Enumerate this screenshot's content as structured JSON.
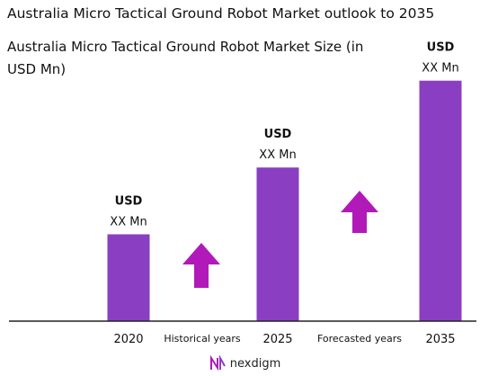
{
  "title": "Australia Micro Tactical Ground Robot Market outlook to 2035",
  "subtitle": "Australia Micro Tactical Ground Robot Market Size (in USD Mn)",
  "colors": {
    "bar": "#8a3fc2",
    "arrow": "#b11ab8",
    "axis": "#222222"
  },
  "chart_data": {
    "type": "bar",
    "categories": [
      "2020",
      "2025",
      "2035"
    ],
    "values": [
      26,
      46,
      72
    ],
    "ylim": [
      0,
      80
    ],
    "grid": false,
    "data_labels": [
      {
        "top": "USD",
        "bottom": "XX Mn"
      },
      {
        "top": "USD",
        "bottom": "XX Mn"
      },
      {
        "top": "USD",
        "bottom": "XX Mn"
      }
    ],
    "period_labels": [
      "Historical years",
      "Forecasted years"
    ]
  },
  "logo": {
    "text": "nexdigm"
  }
}
